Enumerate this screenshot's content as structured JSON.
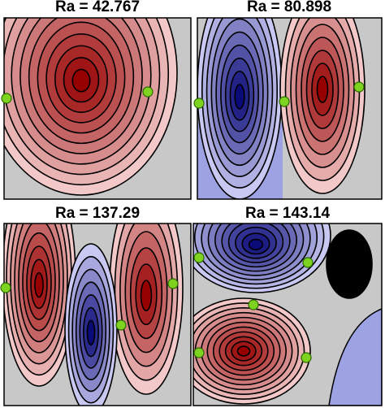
{
  "panels": [
    {
      "title": "Ra = 42.767"
    },
    {
      "title": "Ra = 80.898"
    },
    {
      "title": "Ra = 137.29"
    },
    {
      "title": "Ra = 143.14"
    }
  ]
}
